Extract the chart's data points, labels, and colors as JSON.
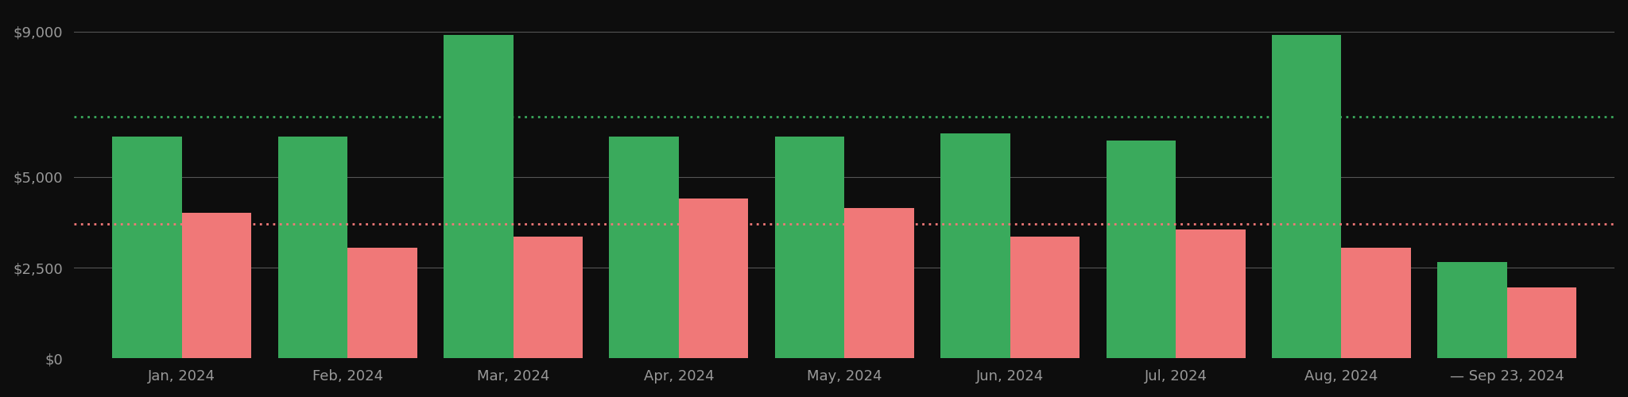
{
  "categories": [
    "Jan, 2024",
    "Feb, 2024",
    "Mar, 2024",
    "Apr, 2024",
    "May, 2024",
    "Jun, 2024",
    "Jul, 2024",
    "Aug, 2024",
    "— Sep 23, 2024"
  ],
  "income": [
    6100,
    6100,
    8900,
    6100,
    6100,
    6200,
    6000,
    8900,
    2650
  ],
  "spending": [
    4000,
    3050,
    3350,
    4400,
    4150,
    3350,
    3550,
    3050,
    1950
  ],
  "income_avg_line": 6650,
  "spending_avg_line": 3700,
  "bar_width": 0.42,
  "income_color": "#3aaa5c",
  "spending_color": "#f07878",
  "income_avg_color": "#3aaa5c",
  "spending_avg_color": "#f07878",
  "background_color": "#0d0d0d",
  "gridline_color": "#555555",
  "text_color": "#999999",
  "ylim": [
    0,
    9500
  ],
  "yticks": [
    0,
    2500,
    5000,
    9000
  ],
  "ytick_labels": [
    "$0",
    "$2,500",
    "$5,000",
    "$9,000"
  ]
}
